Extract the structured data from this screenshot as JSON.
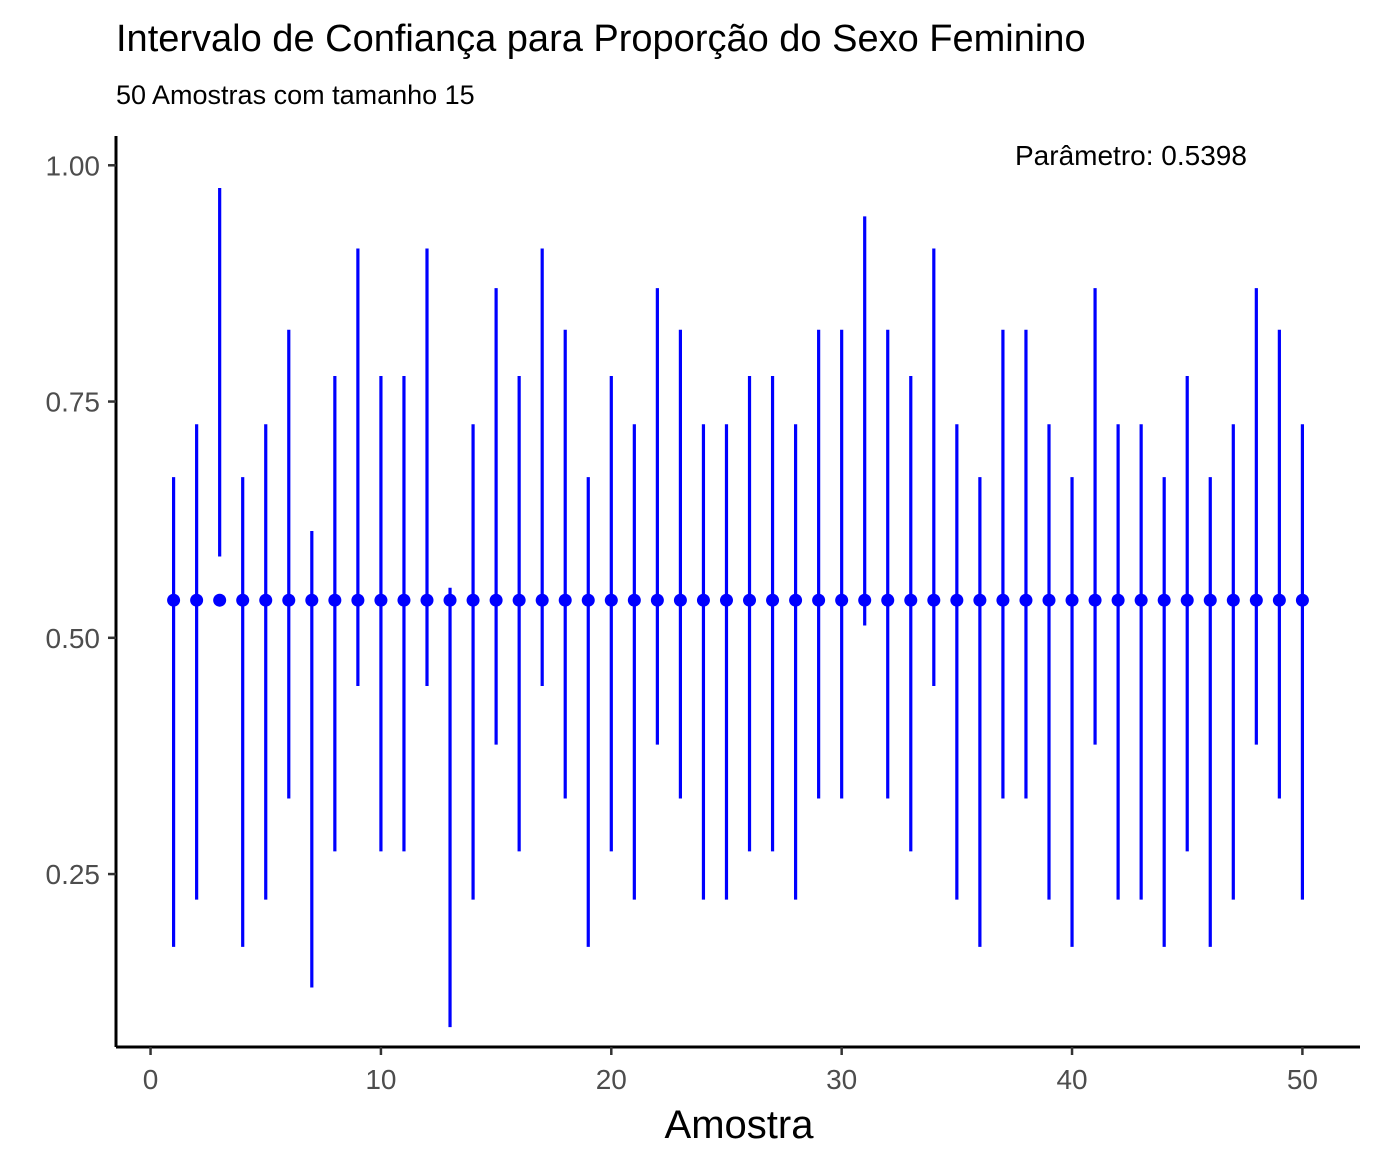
{
  "chart_data": {
    "type": "scatter",
    "title": "Intervalo de Confiança para Proporção do Sexo Feminino",
    "subtitle": "50 Amostras com tamanho 15",
    "xlabel": "Amostra",
    "ylabel": "",
    "annotation": "Parâmetro: 0.5398",
    "parameter": 0.5398,
    "xlim": [
      -1.5,
      52.5
    ],
    "ylim": [
      0.067,
      1.031
    ],
    "x_ticks": [
      0,
      10,
      20,
      30,
      40,
      50
    ],
    "x_tick_labels": [
      "0",
      "10",
      "20",
      "30",
      "40",
      "50"
    ],
    "y_ticks": [
      0.25,
      0.5,
      0.75,
      1.0
    ],
    "y_tick_labels": [
      "0.25",
      "0.50",
      "0.75",
      "1.00"
    ],
    "grid": false,
    "legend": "none",
    "color": "#0000ff",
    "series": [
      {
        "x": [
          1,
          2,
          3,
          4,
          5,
          6,
          7,
          8,
          9,
          10,
          11,
          12,
          13,
          14,
          15,
          16,
          17,
          18,
          19,
          20,
          21,
          22,
          23,
          24,
          25,
          26,
          27,
          28,
          29,
          30,
          31,
          32,
          33,
          34,
          35,
          36,
          37,
          38,
          39,
          40,
          41,
          42,
          43,
          44,
          45,
          46,
          47,
          48,
          49,
          50
        ],
        "y": [
          0.5398,
          0.5398,
          0.5398,
          0.5398,
          0.5398,
          0.5398,
          0.5398,
          0.5398,
          0.5398,
          0.5398,
          0.5398,
          0.5398,
          0.5398,
          0.5398,
          0.5398,
          0.5398,
          0.5398,
          0.5398,
          0.5398,
          0.5398,
          0.5398,
          0.5398,
          0.5398,
          0.5398,
          0.5398,
          0.5398,
          0.5398,
          0.5398,
          0.5398,
          0.5398,
          0.5398,
          0.5398,
          0.5398,
          0.5398,
          0.5398,
          0.5398,
          0.5398,
          0.5398,
          0.5398,
          0.5398,
          0.5398,
          0.5398,
          0.5398,
          0.5398,
          0.5398,
          0.5398,
          0.5398,
          0.5398,
          0.5398,
          0.5398
        ],
        "lower": [
          0.173,
          0.223,
          0.586,
          0.173,
          0.223,
          0.33,
          0.13,
          0.274,
          0.449,
          0.274,
          0.274,
          0.449,
          0.088,
          0.223,
          0.387,
          0.274,
          0.449,
          0.33,
          0.173,
          0.274,
          0.223,
          0.387,
          0.33,
          0.223,
          0.223,
          0.274,
          0.274,
          0.223,
          0.33,
          0.33,
          0.513,
          0.33,
          0.274,
          0.449,
          0.223,
          0.173,
          0.33,
          0.33,
          0.223,
          0.173,
          0.387,
          0.223,
          0.223,
          0.173,
          0.274,
          0.173,
          0.223,
          0.387,
          0.33,
          0.223
        ],
        "upper": [
          0.67,
          0.726,
          0.976,
          0.67,
          0.726,
          0.826,
          0.613,
          0.777,
          0.912,
          0.777,
          0.777,
          0.912,
          0.553,
          0.726,
          0.87,
          0.777,
          0.912,
          0.826,
          0.67,
          0.777,
          0.726,
          0.87,
          0.826,
          0.726,
          0.726,
          0.777,
          0.777,
          0.726,
          0.826,
          0.826,
          0.946,
          0.826,
          0.777,
          0.912,
          0.726,
          0.67,
          0.826,
          0.826,
          0.726,
          0.67,
          0.87,
          0.726,
          0.726,
          0.67,
          0.777,
          0.67,
          0.726,
          0.87,
          0.826,
          0.726
        ]
      }
    ]
  }
}
